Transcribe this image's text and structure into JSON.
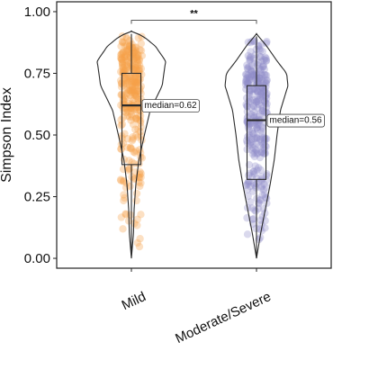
{
  "chart_data": {
    "type": "violin",
    "ylabel": "Simpson Index",
    "ylim": [
      -0.04,
      1.04
    ],
    "yticks": [
      0.0,
      0.25,
      0.5,
      0.75,
      1.0
    ],
    "ytick_labels": [
      "0.00",
      "0.25",
      "0.50",
      "0.75",
      "1.00"
    ],
    "grid": false,
    "categories": [
      "Mild",
      "Moderate/Severe"
    ],
    "series": [
      {
        "category": "Mild",
        "color": "#f5a04a",
        "min": 0.01,
        "q1": 0.38,
        "median": 0.62,
        "q3": 0.75,
        "max": 0.91,
        "median_label": "median=0.62",
        "density_y": [
          0.0,
          0.05,
          0.1,
          0.2,
          0.3,
          0.4,
          0.5,
          0.6,
          0.7,
          0.8,
          0.86,
          0.9,
          0.92
        ],
        "density_w": [
          0.0,
          0.03,
          0.06,
          0.08,
          0.13,
          0.22,
          0.38,
          0.55,
          0.9,
          1.0,
          0.7,
          0.35,
          0.0
        ]
      },
      {
        "category": "Moderate/Severe",
        "color": "#8f8cc8",
        "min": 0.0,
        "q1": 0.32,
        "median": 0.56,
        "q3": 0.7,
        "max": 0.9,
        "median_label": "median=0.56",
        "density_y": [
          0.0,
          0.05,
          0.1,
          0.2,
          0.3,
          0.4,
          0.5,
          0.6,
          0.7,
          0.75,
          0.8,
          0.86,
          0.91
        ],
        "density_w": [
          0.0,
          0.06,
          0.12,
          0.26,
          0.4,
          0.52,
          0.6,
          0.7,
          0.92,
          0.88,
          0.6,
          0.3,
          0.0
        ]
      }
    ],
    "annotations": [
      {
        "type": "significance",
        "between": [
          "Mild",
          "Moderate/Severe"
        ],
        "y": 0.965,
        "label": "**"
      }
    ]
  }
}
